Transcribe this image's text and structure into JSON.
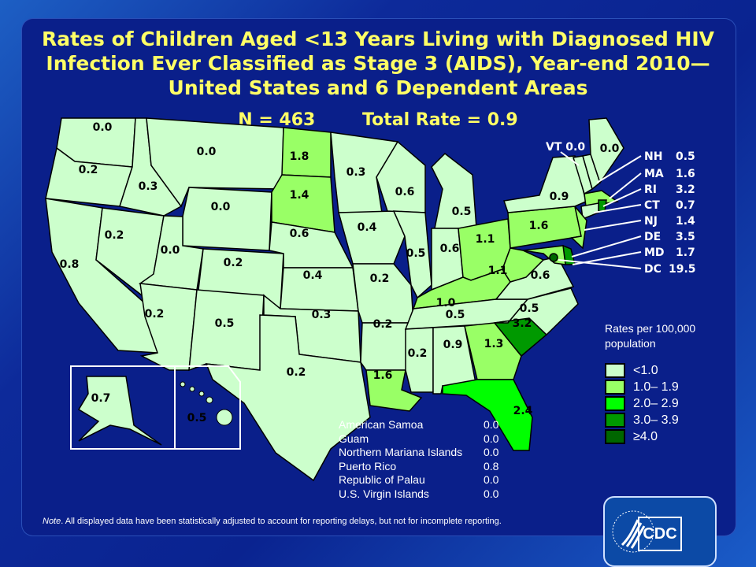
{
  "title": "Rates of Children Aged <13 Years Living with Diagnosed HIV Infection Ever Classified as Stage 3 (AIDS), Year-end 2010— United States and 6 Dependent Areas",
  "title_lines": [
    "Rates of Children Aged <13 Years Living with Diagnosed HIV",
    "Infection Ever Classified as Stage 3 (AIDS), Year-end 2010—",
    "United States and 6 Dependent Areas"
  ],
  "n_label": "N = 463",
  "total_rate_label": "Total Rate = 0.9",
  "states": {
    "WA": "0.0",
    "OR": "0.2",
    "CA": "0.8",
    "NV": "0.2",
    "ID": "0.3",
    "MT": "0.0",
    "WY": "0.0",
    "UT": "0.0",
    "CO": "0.2",
    "AZ": "0.2",
    "NM": "0.5",
    "ND": "1.8",
    "SD": "1.4",
    "NE": "0.6",
    "KS": "0.4",
    "OK": "0.3",
    "TX": "0.2",
    "MN": "0.3",
    "IA": "0.4",
    "MO": "0.2",
    "AR": "0.2",
    "LA": "1.6",
    "WI": "0.6",
    "IL": "0.5",
    "MI": "0.5",
    "IN": "0.6",
    "OH": "1.1",
    "KY": "1.0",
    "TN": "0.5",
    "MS": "0.2",
    "AL": "0.9",
    "GA": "1.3",
    "FL": "2.4",
    "SC": "3.2",
    "NC": "0.5",
    "VA": "0.6",
    "WV": "1.1",
    "PA": "1.6",
    "NY": "0.9",
    "ME": "0.0",
    "AK": "0.7",
    "HI": "0.5"
  },
  "callouts": [
    {
      "abbr": "VT",
      "rate": "0.0"
    },
    {
      "abbr": "NH",
      "rate": "0.5"
    },
    {
      "abbr": "MA",
      "rate": "1.6"
    },
    {
      "abbr": "RI",
      "rate": "3.2"
    },
    {
      "abbr": "CT",
      "rate": "0.7"
    },
    {
      "abbr": "NJ",
      "rate": "1.4"
    },
    {
      "abbr": "DE",
      "rate": "3.5"
    },
    {
      "abbr": "MD",
      "rate": "1.7"
    },
    {
      "abbr": "DC",
      "rate": "19.5"
    }
  ],
  "legend": {
    "title": "Rates  per 100,000 population",
    "bins": [
      {
        "label": "<1.0",
        "min": 0,
        "color": "#ccffcc"
      },
      {
        "label": "1.0– 1.9",
        "min": 1.0,
        "color": "#99ff66"
      },
      {
        "label": "2.0– 2.9",
        "min": 2.0,
        "color": "#00ff00"
      },
      {
        "label": "3.0– 3.9",
        "min": 3.0,
        "color": "#009900"
      },
      {
        "label": "≥4.0",
        "min": 4.0,
        "color": "#006600"
      }
    ]
  },
  "dependent_areas": [
    {
      "name": "American Samoa",
      "rate": "0.0"
    },
    {
      "name": "Guam",
      "rate": "0.0"
    },
    {
      "name": "Northern Mariana Islands",
      "rate": "0.0"
    },
    {
      "name": "Puerto Rico",
      "rate": "0.8"
    },
    {
      "name": "Republic of Palau",
      "rate": "0.0"
    },
    {
      "name": "U.S. Virgin Islands",
      "rate": "0.0"
    }
  ],
  "note_label": "Note",
  "note_text": ". All displayed data have been statistically adjusted to account for reporting delays, but not for incomplete reporting.",
  "logo_text": "CDC",
  "colors": {
    "title": "#ffff66",
    "background": "#0a1f8a"
  }
}
